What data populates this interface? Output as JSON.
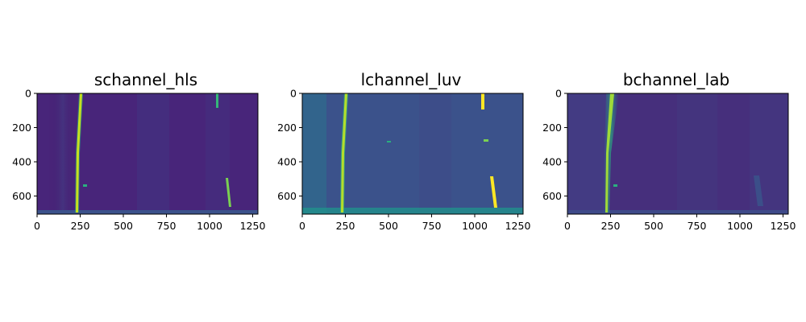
{
  "figure": {
    "panels": [
      {
        "title": "schannel_hls",
        "xticks": [
          "0",
          "250",
          "500",
          "750",
          "1000",
          "1250"
        ],
        "yticks": [
          "0",
          "200",
          "400",
          "600"
        ],
        "image_extent": {
          "width": 1280,
          "height": 720
        },
        "colormap": "viridis",
        "background_color": "#472c7a"
      },
      {
        "title": "lchannel_luv",
        "xticks": [
          "0",
          "250",
          "500",
          "750",
          "1000",
          "1250"
        ],
        "yticks": [
          "0",
          "200",
          "400",
          "600"
        ],
        "image_extent": {
          "width": 1280,
          "height": 720
        },
        "colormap": "viridis",
        "background_color": "#3b528b"
      },
      {
        "title": "bchannel_lab",
        "xticks": [
          "0",
          "250",
          "500",
          "750",
          "1000",
          "1250"
        ],
        "yticks": [
          "0",
          "200",
          "400",
          "600"
        ],
        "image_extent": {
          "width": 1280,
          "height": 720
        },
        "colormap": "viridis",
        "background_color": "#46307d"
      }
    ]
  }
}
